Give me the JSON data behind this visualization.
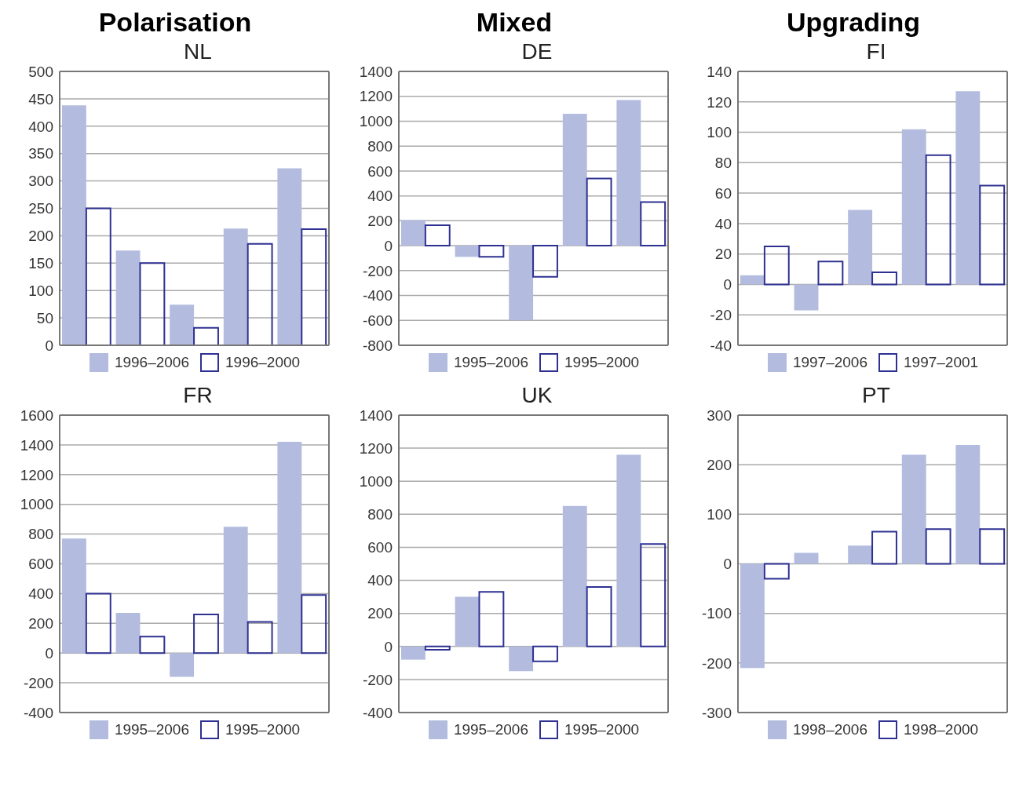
{
  "chart_data": [
    {
      "type": "bar",
      "title": "NL",
      "annotations": [
        "Polarisation"
      ],
      "categories": [
        null,
        null,
        null,
        null,
        null
      ],
      "series": [
        {
          "name": "1996–2006",
          "color": "#b3bcdf",
          "values": [
            438,
            173,
            74,
            213,
            323
          ]
        },
        {
          "name": "1996–2000",
          "color": "#2e3192",
          "values": [
            250,
            150,
            32,
            185,
            212
          ]
        }
      ],
      "ylim": [
        0,
        500
      ],
      "yticks": [
        0,
        50,
        100,
        150,
        200,
        250,
        300,
        350,
        400,
        450,
        500
      ],
      "grid": "y",
      "legend": "bottom"
    },
    {
      "type": "bar",
      "title": "DE",
      "annotations": [
        "Mixed"
      ],
      "categories": [
        null,
        null,
        null,
        null,
        null
      ],
      "series": [
        {
          "name": "1995–2006",
          "color": "#b3bcdf",
          "values": [
            205,
            -90,
            -600,
            1060,
            1170
          ]
        },
        {
          "name": "1995–2000",
          "color": "#2e3192",
          "values": [
            165,
            -90,
            -250,
            540,
            350
          ]
        }
      ],
      "ylim": [
        -800,
        1400
      ],
      "yticks": [
        -800,
        -600,
        -400,
        -200,
        0,
        200,
        400,
        600,
        800,
        1000,
        1200,
        1400
      ],
      "grid": "y",
      "legend": "bottom"
    },
    {
      "type": "bar",
      "title": "FI",
      "annotations": [
        "Upgrading"
      ],
      "categories": [
        null,
        null,
        null,
        null,
        null
      ],
      "series": [
        {
          "name": "1997–2006",
          "color": "#b3bcdf",
          "values": [
            6,
            -17,
            49,
            102,
            127
          ]
        },
        {
          "name": "1997–2001",
          "color": "#2e3192",
          "values": [
            25,
            15,
            8,
            85,
            65
          ]
        }
      ],
      "ylim": [
        -40,
        140
      ],
      "yticks": [
        -40,
        -20,
        0,
        20,
        40,
        60,
        80,
        100,
        120,
        140
      ],
      "grid": "y",
      "legend": "bottom"
    },
    {
      "type": "bar",
      "title": "FR",
      "categories": [
        null,
        null,
        null,
        null,
        null
      ],
      "series": [
        {
          "name": "1995–2006",
          "color": "#b3bcdf",
          "values": [
            770,
            270,
            -160,
            850,
            1420
          ]
        },
        {
          "name": "1995–2000",
          "color": "#2e3192",
          "values": [
            400,
            110,
            260,
            210,
            390
          ]
        }
      ],
      "ylim": [
        -400,
        1600
      ],
      "yticks": [
        -400,
        -200,
        0,
        200,
        400,
        600,
        800,
        1000,
        1200,
        1400,
        1600
      ],
      "grid": "y",
      "legend": "bottom"
    },
    {
      "type": "bar",
      "title": "UK",
      "categories": [
        null,
        null,
        null,
        null,
        null
      ],
      "series": [
        {
          "name": "1995–2006",
          "color": "#b3bcdf",
          "values": [
            -80,
            300,
            -150,
            850,
            1160
          ]
        },
        {
          "name": "1995–2000",
          "color": "#2e3192",
          "values": [
            -20,
            330,
            -90,
            360,
            620
          ]
        }
      ],
      "ylim": [
        -400,
        1400
      ],
      "yticks": [
        -400,
        -200,
        0,
        200,
        400,
        600,
        800,
        1000,
        1200,
        1400
      ],
      "grid": "y",
      "legend": "bottom"
    },
    {
      "type": "bar",
      "title": "PT",
      "categories": [
        null,
        null,
        null,
        null,
        null
      ],
      "series": [
        {
          "name": "1998–2006",
          "color": "#b3bcdf",
          "values": [
            -210,
            22,
            37,
            220,
            240
          ]
        },
        {
          "name": "1998–2000",
          "color": "#2e3192",
          "values": [
            -30,
            0,
            65,
            70,
            70
          ]
        }
      ],
      "ylim": [
        -300,
        300
      ],
      "yticks": [
        -300,
        -200,
        -100,
        0,
        100,
        200,
        300
      ],
      "grid": "y",
      "legend": "bottom"
    }
  ]
}
